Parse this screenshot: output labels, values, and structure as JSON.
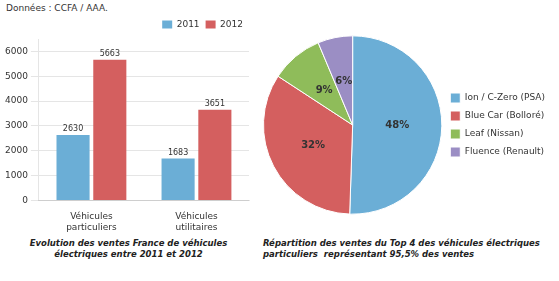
{
  "chart_data": [
    {
      "type": "bar",
      "title": "Evolution des ventes France de véhicules électriques entre 2011 et 2012",
      "annotations": [
        "Données : CCFA / AAA."
      ],
      "categories": [
        "Véhicules\nparticuliers",
        "Véhicules\nutilitaires"
      ],
      "series": [
        {
          "name": "2011",
          "color": "#6baed6",
          "values": [
            2630,
            1683
          ]
        },
        {
          "name": "2012",
          "color": "#d45f5f",
          "values": [
            5663,
            3651
          ]
        }
      ],
      "ylim": [
        0,
        6500
      ],
      "yticks": [
        0,
        1000,
        2000,
        3000,
        4000,
        5000,
        6000
      ],
      "grid": true,
      "legend": "upper right",
      "data_labels": true
    },
    {
      "type": "pie",
      "title": "Répartition des ventes du Top 4 des véhicules électriques\nparticuliers  représentant 95,5% des ventes",
      "categories": [
        "Ion / C-Zero (PSA)",
        "Blue Car (Bolloré)",
        "Leaf (Nissan)",
        "Fluence (Renault)"
      ],
      "values": [
        48,
        32,
        9,
        6
      ],
      "value_labels": [
        "48%",
        "32%",
        "9%",
        "6%"
      ],
      "colors": [
        "#6baed6",
        "#d45f5f",
        "#8fbc5a",
        "#9b8ec4"
      ],
      "legend": "right",
      "data_labels": true
    }
  ]
}
